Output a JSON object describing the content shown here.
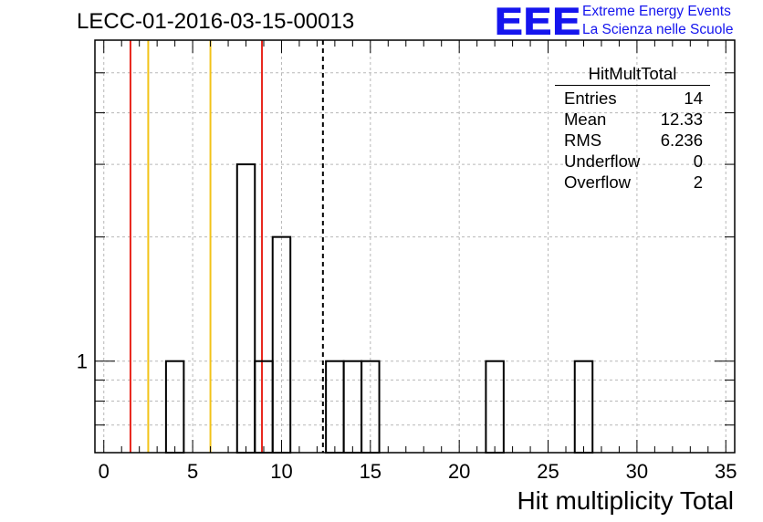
{
  "page": {
    "title": "LECC-01-2016-03-15-00013"
  },
  "logo": {
    "mark": "EEE",
    "line1": "Extreme Energy Events",
    "line2": "La Scienza nelle Scuole",
    "color": "#1515ee"
  },
  "stats": {
    "title": "HitMultTotal",
    "rows": [
      {
        "label": "Entries",
        "value": "14"
      },
      {
        "label": "Mean",
        "value": "12.33"
      },
      {
        "label": "RMS",
        "value": "6.236"
      },
      {
        "label": "Underflow",
        "value": "0"
      },
      {
        "label": "Overflow",
        "value": "2"
      }
    ]
  },
  "chart_data": {
    "type": "bar",
    "style": "step-histogram",
    "xlabel": "Hit multiplicity Total",
    "ylabel": "",
    "xlim": [
      -0.5,
      35.5
    ],
    "ylim": [
      0.6,
      6
    ],
    "yscale": "log",
    "grid": true,
    "legend": "top-right",
    "x_ticks": [
      0,
      5,
      10,
      15,
      20,
      25,
      30,
      35
    ],
    "y_tick_labels": [
      {
        "value": 1,
        "label": "1"
      }
    ],
    "bins": [
      {
        "x": 3.5,
        "width": 1,
        "value": 0
      },
      {
        "x": 4,
        "width": 1,
        "value": 1
      },
      {
        "x": 5,
        "width": 1,
        "value": 0
      },
      {
        "x": 8,
        "width": 1,
        "value": 3
      },
      {
        "x": 9,
        "width": 1,
        "value": 1
      },
      {
        "x": 10,
        "width": 1,
        "value": 2
      },
      {
        "x": 13,
        "width": 1,
        "value": 1
      },
      {
        "x": 14,
        "width": 1,
        "value": 1
      },
      {
        "x": 15,
        "width": 1,
        "value": 1
      },
      {
        "x": 22,
        "width": 1,
        "value": 1
      },
      {
        "x": 27,
        "width": 1,
        "value": 1
      }
    ],
    "vlines": [
      {
        "x": 1.5,
        "color": "#e8251b",
        "style": "solid"
      },
      {
        "x": 2.5,
        "color": "#f2c318",
        "style": "solid"
      },
      {
        "x": 6.0,
        "color": "#f2c318",
        "style": "solid"
      },
      {
        "x": 8.9,
        "color": "#e8251b",
        "style": "solid"
      },
      {
        "x": 12.33,
        "color": "#000000",
        "style": "dashed"
      }
    ]
  }
}
